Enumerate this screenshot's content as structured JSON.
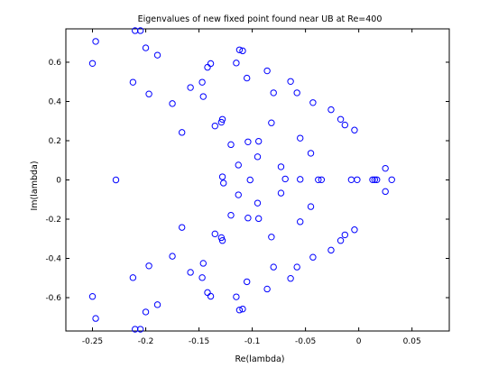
{
  "chart_data": {
    "type": "scatter",
    "title": "Eigenvalues of new fixed point found near UB at Re=400",
    "xlabel": "Re(lambda)",
    "ylabel": "Im(lambda)",
    "xlim": [
      -0.275,
      0.085
    ],
    "ylim": [
      -0.77,
      0.77
    ],
    "xticks": [
      -0.25,
      -0.2,
      -0.15,
      -0.1,
      -0.05,
      0,
      0.05
    ],
    "xtick_labels": [
      "-0.25",
      "-0.2",
      "-0.15",
      "-0.1",
      "-0.05",
      "0",
      "0.05"
    ],
    "yticks": [
      -0.6,
      -0.4,
      -0.2,
      0,
      0.2,
      0.4,
      0.6
    ],
    "ytick_labels": [
      "-0.6",
      "-0.4",
      "-0.2",
      "0",
      "0.2",
      "0.4",
      "0.6"
    ],
    "grid": false,
    "legend": "none",
    "marker": "open-circle",
    "color": "#0000ff",
    "points": [
      [
        -0.247,
        0.706
      ],
      [
        -0.25,
        0.594
      ],
      [
        -0.21,
        0.761
      ],
      [
        -0.205,
        0.761
      ],
      [
        -0.2,
        0.673
      ],
      [
        -0.189,
        0.636
      ],
      [
        -0.212,
        0.498
      ],
      [
        -0.197,
        0.438
      ],
      [
        -0.175,
        0.389
      ],
      [
        -0.166,
        0.242
      ],
      [
        -0.147,
        0.498
      ],
      [
        -0.146,
        0.425
      ],
      [
        -0.158,
        0.471
      ],
      [
        -0.142,
        0.574
      ],
      [
        -0.139,
        0.593
      ],
      [
        -0.135,
        0.275
      ],
      [
        -0.129,
        0.294
      ],
      [
        -0.128,
        0.309
      ],
      [
        -0.115,
        0.596
      ],
      [
        -0.112,
        0.663
      ],
      [
        -0.109,
        0.658
      ],
      [
        -0.105,
        0.519
      ],
      [
        -0.12,
        0.18
      ],
      [
        -0.113,
        0.076
      ],
      [
        -0.128,
        0.016
      ],
      [
        -0.127,
        -0.016
      ],
      [
        -0.104,
        0.194
      ],
      [
        -0.094,
        0.197
      ],
      [
        -0.095,
        0.118
      ],
      [
        -0.086,
        0.556
      ],
      [
        -0.08,
        0.444
      ],
      [
        -0.082,
        0.291
      ],
      [
        -0.073,
        0.067
      ],
      [
        -0.069,
        0.005
      ],
      [
        -0.064,
        0.502
      ],
      [
        -0.058,
        0.444
      ],
      [
        -0.055,
        0.003
      ],
      [
        -0.055,
        0.213
      ],
      [
        -0.043,
        0.394
      ],
      [
        -0.045,
        0.136
      ],
      [
        -0.038,
        0.001
      ],
      [
        -0.035,
        0.001
      ],
      [
        -0.026,
        0.358
      ],
      [
        -0.017,
        0.309
      ],
      [
        -0.013,
        0.28
      ],
      [
        -0.004,
        0.254
      ],
      [
        -0.007,
        0.001
      ],
      [
        -0.0015,
        0.001
      ],
      [
        0.013,
        0.001
      ],
      [
        0.015,
        0.001
      ],
      [
        0.017,
        0.001
      ],
      [
        0.025,
        0.059
      ],
      [
        0.031,
        0.001
      ],
      [
        -0.228,
        0.0
      ],
      [
        -0.102,
        0.0
      ],
      [
        -0.247,
        -0.706
      ],
      [
        -0.25,
        -0.594
      ],
      [
        -0.21,
        -0.761
      ],
      [
        -0.205,
        -0.761
      ],
      [
        -0.2,
        -0.673
      ],
      [
        -0.189,
        -0.636
      ],
      [
        -0.212,
        -0.498
      ],
      [
        -0.197,
        -0.438
      ],
      [
        -0.175,
        -0.389
      ],
      [
        -0.166,
        -0.242
      ],
      [
        -0.147,
        -0.498
      ],
      [
        -0.146,
        -0.425
      ],
      [
        -0.158,
        -0.471
      ],
      [
        -0.142,
        -0.574
      ],
      [
        -0.139,
        -0.593
      ],
      [
        -0.135,
        -0.275
      ],
      [
        -0.129,
        -0.294
      ],
      [
        -0.128,
        -0.309
      ],
      [
        -0.115,
        -0.596
      ],
      [
        -0.112,
        -0.663
      ],
      [
        -0.109,
        -0.658
      ],
      [
        -0.105,
        -0.519
      ],
      [
        -0.12,
        -0.18
      ],
      [
        -0.113,
        -0.076
      ],
      [
        -0.104,
        -0.194
      ],
      [
        -0.094,
        -0.197
      ],
      [
        -0.095,
        -0.118
      ],
      [
        -0.086,
        -0.556
      ],
      [
        -0.08,
        -0.444
      ],
      [
        -0.082,
        -0.291
      ],
      [
        -0.073,
        -0.067
      ],
      [
        -0.064,
        -0.502
      ],
      [
        -0.058,
        -0.444
      ],
      [
        -0.055,
        -0.213
      ],
      [
        -0.043,
        -0.394
      ],
      [
        -0.045,
        -0.136
      ],
      [
        -0.026,
        -0.358
      ],
      [
        -0.017,
        -0.309
      ],
      [
        -0.013,
        -0.28
      ],
      [
        -0.004,
        -0.254
      ],
      [
        0.025,
        -0.059
      ]
    ]
  }
}
